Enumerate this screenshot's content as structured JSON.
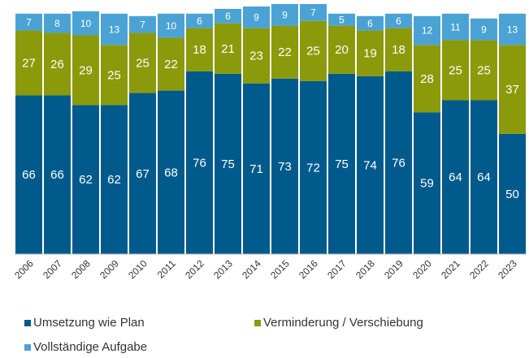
{
  "chart_data": {
    "type": "stacked_bar",
    "categories": [
      "2006",
      "2007",
      "2008",
      "2009",
      "2010",
      "2011",
      "2012",
      "2013",
      "2014",
      "2015",
      "2016",
      "2017",
      "2018",
      "2019",
      "2020",
      "2021",
      "2022",
      "2023"
    ],
    "series": [
      {
        "name": "Umsetzung wie Plan",
        "color": "#005a8c",
        "values": [
          66,
          66,
          62,
          62,
          67,
          68,
          76,
          75,
          71,
          73,
          72,
          75,
          74,
          76,
          59,
          64,
          64,
          50
        ]
      },
      {
        "name": "Verminderung / Verschiebung",
        "color": "#8a9a0a",
        "values": [
          27,
          26,
          29,
          25,
          25,
          22,
          18,
          21,
          23,
          22,
          25,
          20,
          19,
          18,
          28,
          25,
          25,
          37
        ]
      },
      {
        "name": "Vollständige Aufgabe",
        "color": "#4aa3d4",
        "values": [
          7,
          8,
          10,
          13,
          7,
          10,
          6,
          6,
          9,
          9,
          7,
          5,
          6,
          6,
          12,
          11,
          9,
          13
        ]
      }
    ],
    "ylim": [
      0,
      104
    ]
  }
}
